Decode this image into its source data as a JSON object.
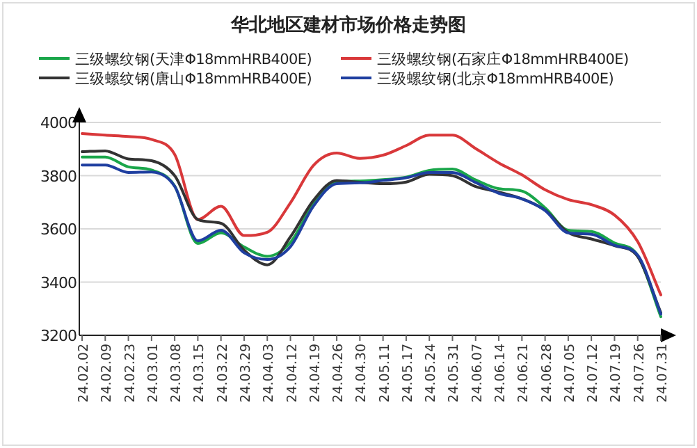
{
  "chart_data": {
    "type": "line",
    "title": "华北地区建材市场价格走势图",
    "categories": [
      "24.02.02",
      "24.02.09",
      "24.02.23",
      "24.03.01",
      "24.03.08",
      "24.03.15",
      "24.03.22",
      "24.03.29",
      "24.04.03",
      "24.04.12",
      "24.04.19",
      "24.04.26",
      "24.04.30",
      "24.05.11",
      "24.05.17",
      "24.05.24",
      "24.05.31",
      "24.06.07",
      "24.06.14",
      "24.06.21",
      "24.06.28",
      "24.07.05",
      "24.07.12",
      "24.07.19",
      "24.07.26",
      "24.07.31"
    ],
    "series": [
      {
        "name": "三级螺纹钢(天津Φ18mmHRB400E)",
        "color": "#1aa64a",
        "values": [
          3870,
          3870,
          3833,
          3821,
          3761,
          3545,
          3585,
          3532,
          3497,
          3549,
          3694,
          3776,
          3780,
          3785,
          3794,
          3820,
          3825,
          3784,
          3751,
          3742,
          3679,
          3595,
          3590,
          3547,
          3500,
          3270
        ]
      },
      {
        "name": "三级螺纹钢(石家庄Φ18mmHRB400E)",
        "color": "#d9383a",
        "values": [
          3958,
          3952,
          3947,
          3936,
          3880,
          3635,
          3685,
          3575,
          3587,
          3698,
          3839,
          3885,
          3865,
          3877,
          3913,
          3952,
          3952,
          3902,
          3848,
          3803,
          3747,
          3710,
          3691,
          3652,
          3552,
          3352
        ]
      },
      {
        "name": "三级螺纹钢(唐山Φ18mmHRB400E)",
        "color": "#333333",
        "values": [
          3890,
          3893,
          3863,
          3856,
          3800,
          3635,
          3621,
          3520,
          3465,
          3570,
          3708,
          3782,
          3775,
          3770,
          3776,
          3805,
          3800,
          3759,
          3738,
          3713,
          3670,
          3586,
          3562,
          3537,
          3496,
          3285
        ]
      },
      {
        "name": "三级螺纹钢(北京Φ18mmHRB400E)",
        "color": "#1f3fa0",
        "values": [
          3840,
          3840,
          3812,
          3814,
          3760,
          3555,
          3595,
          3510,
          3485,
          3533,
          3686,
          3770,
          3773,
          3782,
          3792,
          3812,
          3812,
          3774,
          3734,
          3713,
          3669,
          3585,
          3580,
          3538,
          3501,
          3280
        ]
      }
    ],
    "ylim": [
      3200,
      4000
    ],
    "yticks": [
      3200,
      3400,
      3600,
      3800,
      4000
    ],
    "grid": "y",
    "legend": "top"
  }
}
